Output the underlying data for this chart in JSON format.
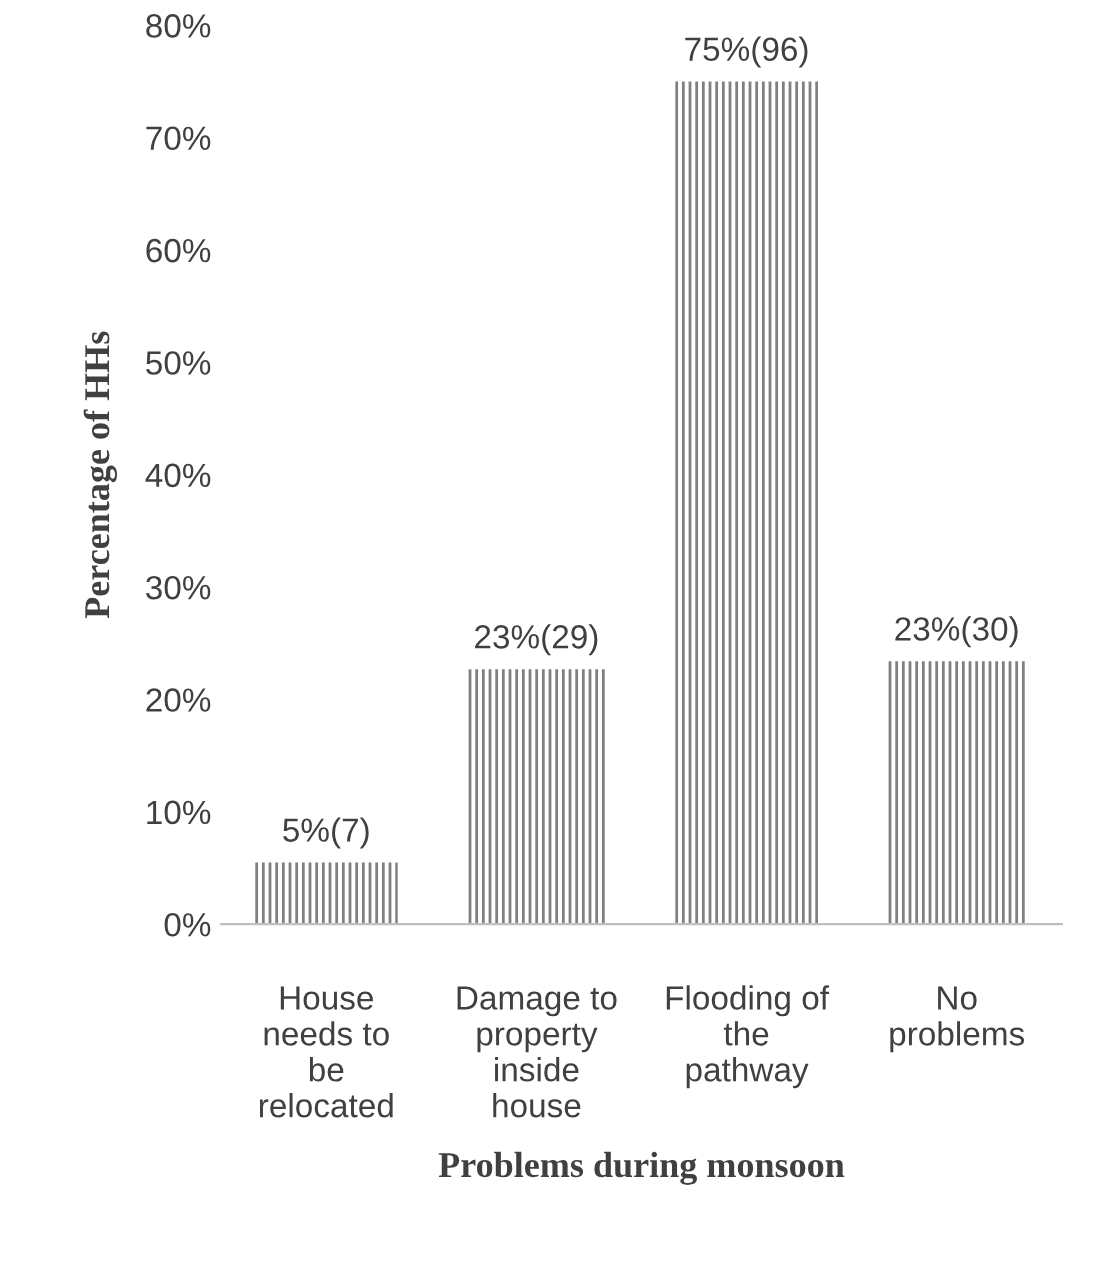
{
  "chart_data": {
    "type": "bar",
    "xlabel": "Problems during monsoon",
    "ylabel": "Percentage of HHs",
    "categories": [
      "House\nneeds to\nbe\nrelocated",
      "Damage to\nproperty\ninside\nhouse",
      "Flooding of\nthe\npathway",
      "No\nproblems"
    ],
    "values": [
      5.5,
      22.7,
      75,
      23.4
    ],
    "value_labels": [
      "5%(7)",
      "23%(29)",
      "75%(96)",
      "23%(30)"
    ],
    "color": "#808080",
    "ylim": [
      0,
      80
    ],
    "yticks": [
      {
        "value": 0,
        "label": "0%"
      },
      {
        "value": 10,
        "label": "10%"
      },
      {
        "value": 20,
        "label": "20%"
      },
      {
        "value": 30,
        "label": "30%"
      },
      {
        "value": 40,
        "label": "40%"
      },
      {
        "value": 50,
        "label": "50%"
      },
      {
        "value": 60,
        "label": "60%"
      },
      {
        "value": 70,
        "label": "70%"
      },
      {
        "value": 80,
        "label": "80%"
      }
    ],
    "grid": false
  }
}
